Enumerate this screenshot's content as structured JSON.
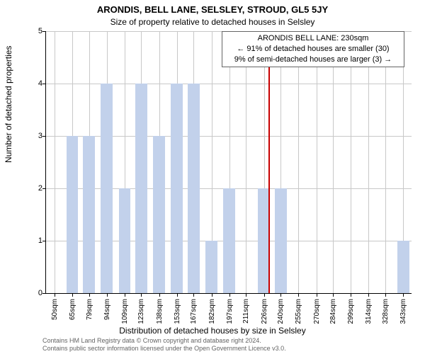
{
  "title": "ARONDIS, BELL LANE, SELSLEY, STROUD, GL5 5JY",
  "subtitle": "Size of property relative to detached houses in Selsley",
  "callout": {
    "line1": "ARONDIS BELL LANE: 230sqm",
    "line2": "← 91% of detached houses are smaller (30)",
    "line3": "9% of semi-detached houses are larger (3) →"
  },
  "xlabel": "Distribution of detached houses by size in Selsley",
  "ylabel": "Number of detached properties",
  "chart": {
    "type": "bar",
    "bar_color": "#c2d1eb",
    "ref_line_color": "#c80000",
    "ref_x": 230,
    "grid_color": "#c8c8c8",
    "background_color": "#ffffff",
    "axis_color": "#000000",
    "ylim": [
      0,
      5
    ],
    "ytick_step": 1,
    "xlim": [
      43,
      350
    ],
    "xlabel_fontsize": 12,
    "ylabel_fontsize": 12,
    "tick_fontsize": 10,
    "xticks": [
      50,
      65,
      79,
      94,
      109,
      123,
      138,
      153,
      167,
      182,
      197,
      211,
      226,
      240,
      255,
      270,
      284,
      299,
      314,
      328,
      343
    ],
    "xtick_labels": [
      "50sqm",
      "65sqm",
      "79sqm",
      "94sqm",
      "109sqm",
      "123sqm",
      "138sqm",
      "153sqm",
      "167sqm",
      "182sqm",
      "197sqm",
      "211sqm",
      "226sqm",
      "240sqm",
      "255sqm",
      "270sqm",
      "284sqm",
      "299sqm",
      "314sqm",
      "328sqm",
      "343sqm"
    ],
    "bins": [
      {
        "x": 50,
        "count": 0
      },
      {
        "x": 65,
        "count": 3
      },
      {
        "x": 79,
        "count": 3
      },
      {
        "x": 94,
        "count": 4
      },
      {
        "x": 109,
        "count": 2
      },
      {
        "x": 123,
        "count": 4
      },
      {
        "x": 138,
        "count": 3
      },
      {
        "x": 153,
        "count": 4
      },
      {
        "x": 167,
        "count": 4
      },
      {
        "x": 182,
        "count": 1
      },
      {
        "x": 197,
        "count": 2
      },
      {
        "x": 211,
        "count": 0
      },
      {
        "x": 226,
        "count": 2
      },
      {
        "x": 240,
        "count": 2
      },
      {
        "x": 255,
        "count": 0
      },
      {
        "x": 270,
        "count": 0
      },
      {
        "x": 284,
        "count": 0
      },
      {
        "x": 299,
        "count": 0
      },
      {
        "x": 314,
        "count": 0
      },
      {
        "x": 328,
        "count": 0
      },
      {
        "x": 343,
        "count": 1
      }
    ],
    "bar_width_data": 10
  },
  "footer": {
    "line1": "Contains HM Land Registry data © Crown copyright and database right 2024.",
    "line2": "Contains public sector information licensed under the Open Government Licence v3.0."
  }
}
